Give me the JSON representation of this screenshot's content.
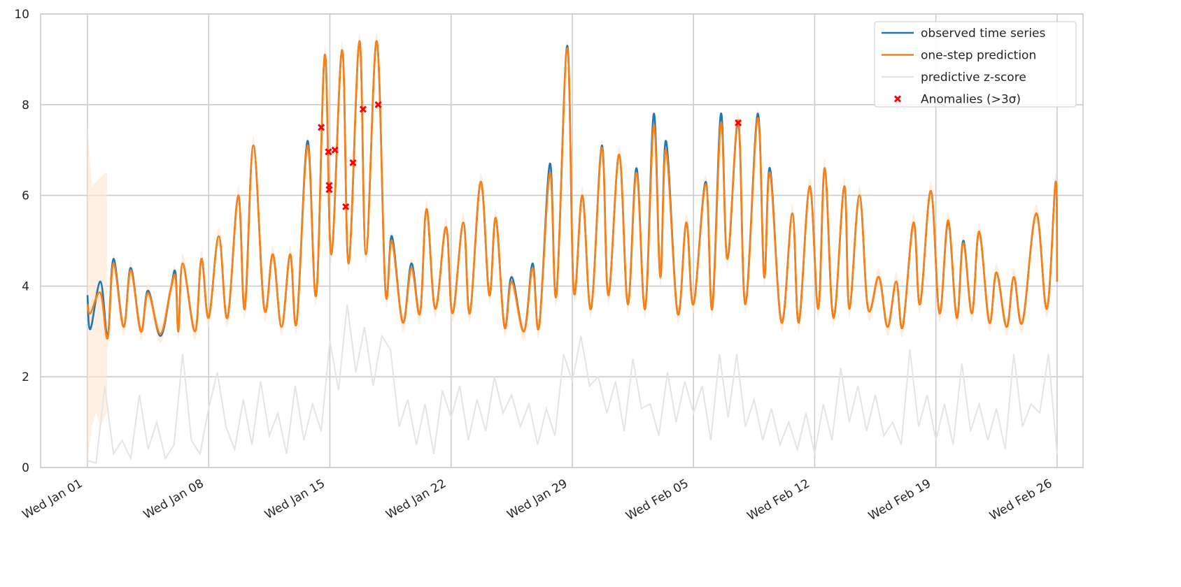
{
  "chart_data": {
    "type": "line",
    "title": "",
    "xlabel": "",
    "ylabel": "",
    "ylim": [
      0,
      10
    ],
    "xlim": [
      "12-29 07",
      "02-27 12"
    ],
    "grid": true,
    "legend_position": "top-right",
    "y_ticks": [
      "0",
      "2",
      "4",
      "6",
      "8",
      "10"
    ],
    "x_ticks": [
      {
        "at": "01-01 00",
        "label": "Wed Jan 01"
      },
      {
        "at": "01-08 00",
        "label": "Wed Jan 08"
      },
      {
        "at": "01-15 00",
        "label": "Wed Jan 15"
      },
      {
        "at": "01-22 00",
        "label": "Wed Jan 22"
      },
      {
        "at": "01-29 00",
        "label": "Wed Jan 29"
      },
      {
        "at": "02-05 00",
        "label": "Wed Feb 05"
      },
      {
        "at": "02-12 00",
        "label": "Wed Feb 12"
      },
      {
        "at": "02-19 00",
        "label": "Wed Feb 19"
      },
      {
        "at": "02-26 00",
        "label": "Wed Feb 26"
      }
    ],
    "colors": {
      "observed": "#1f77b4",
      "prediction": "#ff7f0e",
      "band": "#ffe6d2",
      "zscore": "#e5e5e5",
      "anomaly": "#ff0000",
      "grid": "#cccccc"
    },
    "legend": [
      {
        "label": "observed time series",
        "key": "observed"
      },
      {
        "label": "one-step prediction",
        "key": "prediction"
      },
      {
        "label": "predictive z-score",
        "key": "zscore"
      },
      {
        "label": "Anomalies (>3σ)",
        "key": "anomaly"
      }
    ],
    "x": [
      "01-01 00",
      "01-01 04",
      "01-01 18",
      "01-02 04",
      "01-02 12",
      "01-03 02",
      "01-03 12",
      "01-04 02",
      "01-04 12",
      "01-05 05",
      "01-05 19",
      "01-06 02",
      "01-06 06",
      "01-06 12",
      "01-07 05",
      "01-07 14",
      "01-08 00",
      "01-08 14",
      "01-09 02",
      "01-09 17",
      "01-10 02",
      "01-10 14",
      "01-11 05",
      "01-11 17",
      "01-12 05",
      "01-12 17",
      "01-13 02",
      "01-13 17",
      "01-14 05",
      "01-14 17",
      "01-15 02",
      "01-15 17",
      "01-16 02",
      "01-16 17",
      "01-17 02",
      "01-17 17",
      "01-18 05",
      "01-18 14",
      "01-19 05",
      "01-19 17",
      "01-20 05",
      "01-20 14",
      "01-21 02",
      "01-21 17",
      "01-22 02",
      "01-22 17",
      "01-23 02",
      "01-23 17",
      "01-24 05",
      "01-24 14",
      "01-25 02",
      "01-25 12",
      "01-26 05",
      "01-26 17",
      "01-27 02",
      "01-27 17",
      "01-28 02",
      "01-28 17",
      "01-29 02",
      "01-29 14",
      "01-30 02",
      "01-30 17",
      "01-31 02",
      "01-31 17",
      "02-01 05",
      "02-01 17",
      "02-02 05",
      "02-02 17",
      "02-03 02",
      "02-03 10",
      "02-04 02",
      "02-04 14",
      "02-05 00",
      "02-05 17",
      "02-06 02",
      "02-06 14",
      "02-06 23",
      "02-07 14",
      "02-08 00",
      "02-08 17",
      "02-09 02",
      "02-09 10",
      "02-10 02",
      "02-10 17",
      "02-11 02",
      "02-11 17",
      "02-12 05",
      "02-12 14",
      "02-13 02",
      "02-13 17",
      "02-14 00",
      "02-14 14",
      "02-15 02",
      "02-15 17",
      "02-16 05",
      "02-16 17",
      "02-17 02",
      "02-17 17",
      "02-18 02",
      "02-18 17",
      "02-19 05",
      "02-19 17",
      "02-20 05",
      "02-20 14",
      "02-21 02",
      "02-21 12",
      "02-22 02",
      "02-22 12",
      "02-23 02",
      "02-23 12",
      "02-24 00",
      "02-24 19",
      "02-25 10",
      "02-25 22",
      "02-26 00"
    ],
    "series": [
      {
        "name": "observed time series",
        "values": [
          3.8,
          3.05,
          4.1,
          2.9,
          4.6,
          3.1,
          4.4,
          3.0,
          3.9,
          2.9,
          3.9,
          4.3,
          3.0,
          4.5,
          3.0,
          4.6,
          3.3,
          5.1,
          3.3,
          6.0,
          3.5,
          7.1,
          3.5,
          4.7,
          3.1,
          4.7,
          3.2,
          7.2,
          3.8,
          9.1,
          4.7,
          9.2,
          4.5,
          9.4,
          4.7,
          9.4,
          3.9,
          5.1,
          3.2,
          4.5,
          3.4,
          5.7,
          3.5,
          5.3,
          3.4,
          5.4,
          3.4,
          6.3,
          3.8,
          5.5,
          3.1,
          4.2,
          3.0,
          4.5,
          3.1,
          6.7,
          3.8,
          9.3,
          3.9,
          6.0,
          3.5,
          7.1,
          3.8,
          6.9,
          3.6,
          6.6,
          3.5,
          7.8,
          4.2,
          7.2,
          3.4,
          5.4,
          3.6,
          6.3,
          3.5,
          7.8,
          4.6,
          7.6,
          3.6,
          7.8,
          4.2,
          6.6,
          3.2,
          5.6,
          3.2,
          6.2,
          3.5,
          6.6,
          3.3,
          6.2,
          3.5,
          6.0,
          3.5,
          4.2,
          3.1,
          4.1,
          3.1,
          5.4,
          3.6,
          6.1,
          3.4,
          5.4,
          3.3,
          5.0,
          3.4,
          5.2,
          3.2,
          4.3,
          3.1,
          4.2,
          3.2,
          5.6,
          3.5,
          6.3,
          4.1
        ]
      },
      {
        "name": "one-step prediction",
        "values": [
          3.6,
          3.4,
          3.85,
          2.85,
          4.5,
          3.1,
          4.35,
          3.0,
          3.85,
          2.95,
          3.9,
          4.2,
          3.0,
          4.5,
          3.0,
          4.6,
          3.3,
          5.1,
          3.3,
          6.0,
          3.5,
          7.1,
          3.5,
          4.7,
          3.1,
          4.7,
          3.2,
          7.1,
          3.8,
          9.1,
          4.7,
          9.2,
          4.5,
          9.4,
          4.7,
          9.4,
          3.9,
          5.0,
          3.2,
          4.4,
          3.4,
          5.7,
          3.5,
          5.3,
          3.4,
          5.4,
          3.4,
          6.3,
          3.8,
          5.5,
          3.1,
          4.1,
          3.0,
          4.4,
          3.1,
          6.5,
          3.8,
          9.25,
          3.9,
          6.0,
          3.5,
          7.05,
          3.8,
          6.9,
          3.6,
          6.5,
          3.5,
          7.55,
          4.2,
          7.0,
          3.4,
          5.4,
          3.6,
          6.25,
          3.5,
          7.6,
          4.6,
          7.65,
          3.6,
          7.7,
          4.2,
          6.5,
          3.2,
          5.6,
          3.2,
          6.2,
          3.5,
          6.6,
          3.3,
          6.2,
          3.5,
          6.0,
          3.5,
          4.2,
          3.1,
          4.1,
          3.1,
          5.4,
          3.6,
          6.1,
          3.4,
          5.45,
          3.3,
          4.95,
          3.4,
          5.2,
          3.2,
          4.3,
          3.1,
          4.2,
          3.2,
          5.6,
          3.5,
          6.3,
          4.1
        ]
      }
    ],
    "prediction_band_sigma": 0.2,
    "initial_band": {
      "x": [
        "01-01 00",
        "01-01 06",
        "01-01 12",
        "01-01 18",
        "01-02 00",
        "01-02 03"
      ],
      "lower": [
        0.1,
        0.9,
        1.2,
        0.9,
        1.1,
        1.2
      ],
      "upper": [
        7.6,
        6.2,
        6.3,
        6.4,
        6.5,
        6.5
      ]
    },
    "zscore": {
      "x_start": "01-01 00",
      "step_hours": 12,
      "values": [
        0.15,
        0.1,
        1.8,
        0.3,
        0.6,
        0.2,
        1.6,
        0.4,
        1.0,
        0.2,
        0.5,
        2.5,
        0.6,
        0.3,
        1.3,
        2.1,
        0.9,
        0.4,
        1.5,
        0.5,
        1.9,
        0.7,
        1.2,
        0.3,
        1.8,
        0.6,
        1.4,
        0.8,
        2.8,
        1.7,
        3.6,
        2.1,
        3.1,
        1.8,
        2.9,
        2.6,
        0.9,
        1.5,
        0.5,
        1.4,
        0.3,
        1.7,
        1.1,
        1.8,
        0.6,
        1.5,
        0.8,
        2.0,
        1.2,
        1.6,
        0.9,
        1.4,
        0.5,
        1.3,
        0.7,
        2.5,
        1.9,
        2.9,
        1.8,
        2.0,
        1.2,
        1.9,
        0.8,
        2.4,
        1.3,
        1.4,
        0.7,
        2.1,
        1.0,
        1.9,
        1.2,
        1.8,
        0.6,
        2.5,
        1.1,
        2.5,
        0.9,
        1.5,
        0.6,
        1.3,
        0.5,
        1.0,
        0.4,
        1.2,
        0.3,
        1.4,
        0.6,
        2.2,
        1.0,
        1.8,
        0.8,
        1.6,
        0.7,
        1.0,
        0.5,
        2.6,
        0.9,
        1.6,
        0.6,
        1.4,
        0.5,
        2.3,
        0.8,
        1.4,
        0.6,
        1.3,
        0.4,
        2.5,
        0.9,
        1.4,
        1.2,
        2.5,
        0.3
      ]
    },
    "anomalies": [
      {
        "x": "01-14 12",
        "y": 7.5
      },
      {
        "x": "01-14 22",
        "y": 6.96
      },
      {
        "x": "01-14 23",
        "y": 6.22
      },
      {
        "x": "01-14 23",
        "y": 6.13
      },
      {
        "x": "01-15 07",
        "y": 7.0
      },
      {
        "x": "01-15 22",
        "y": 5.75
      },
      {
        "x": "01-16 08",
        "y": 6.72
      },
      {
        "x": "01-16 22",
        "y": 7.9
      },
      {
        "x": "01-17 19",
        "y": 8.0
      },
      {
        "x": "02-07 14",
        "y": 7.6
      }
    ]
  }
}
